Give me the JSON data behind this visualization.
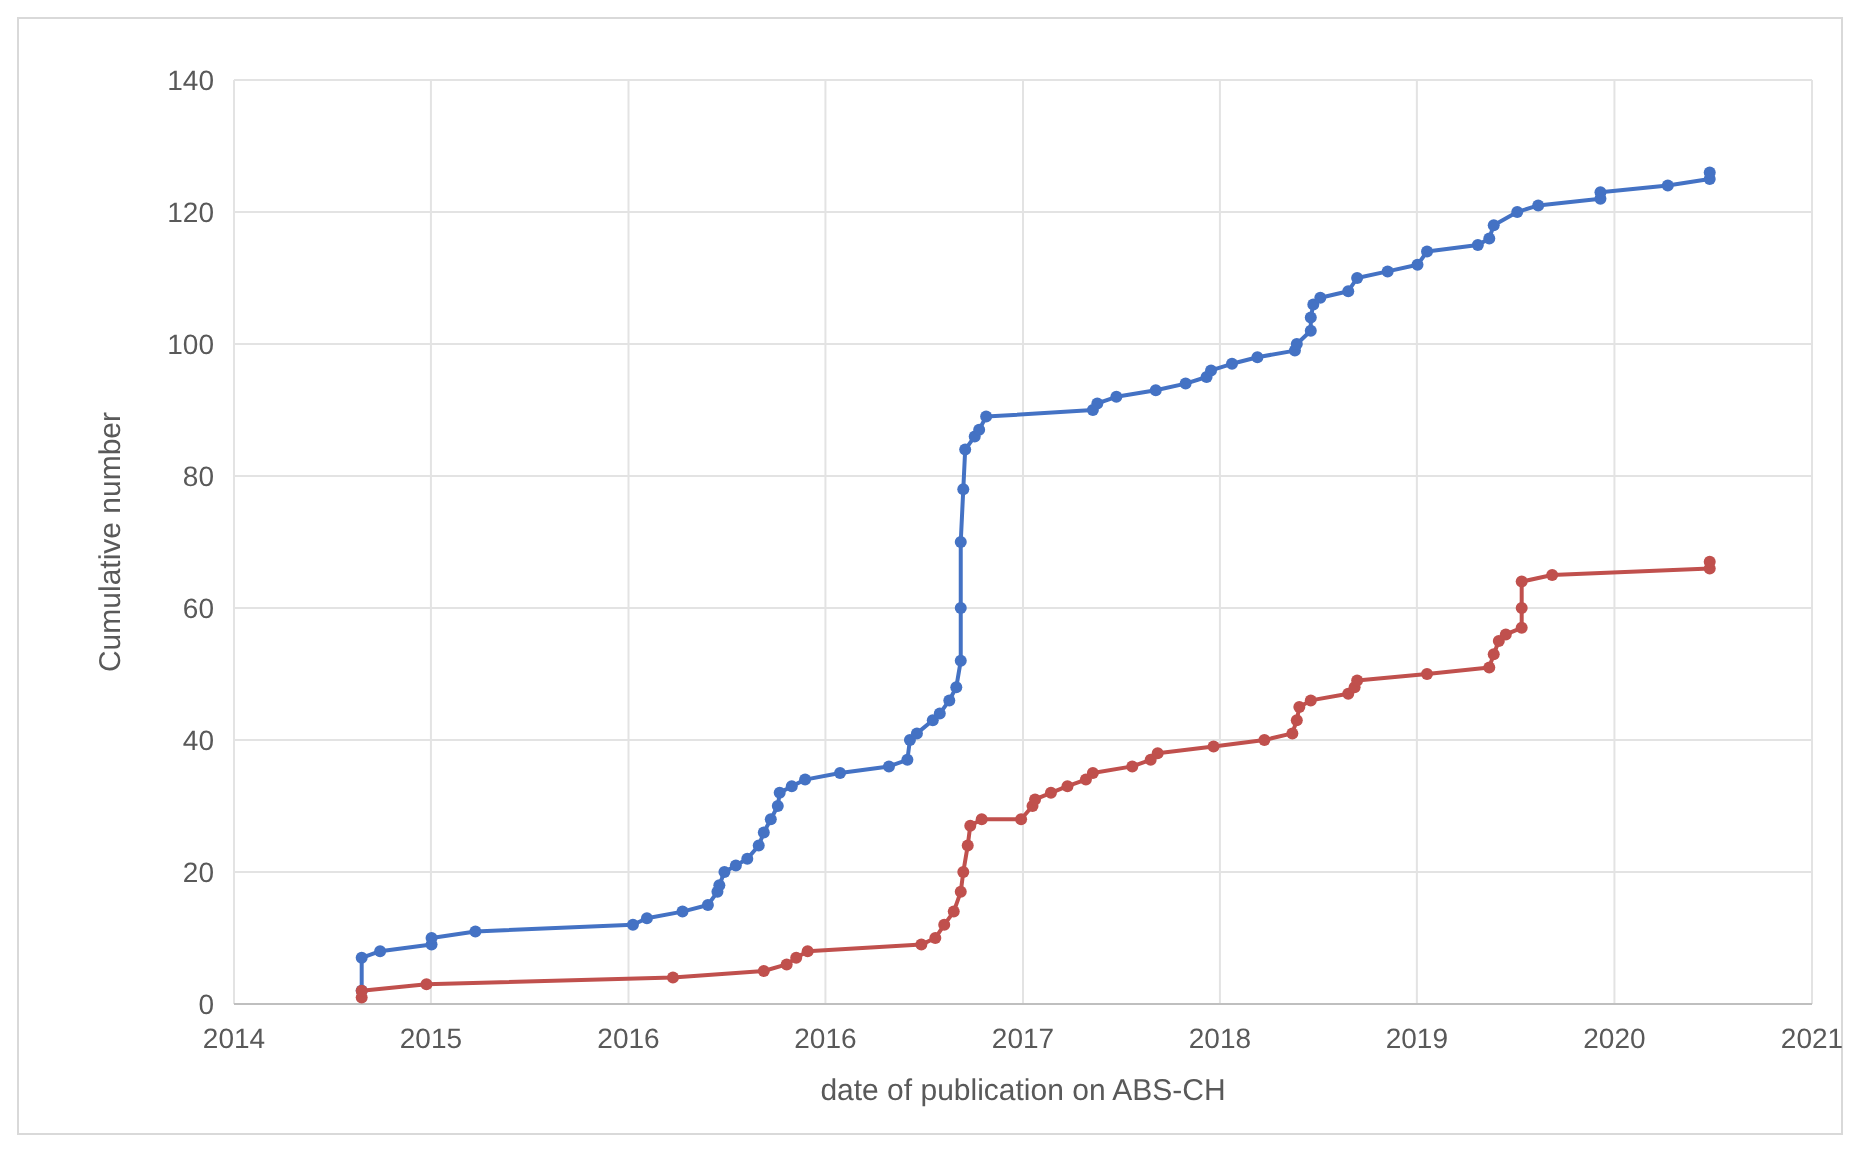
{
  "chart_data": {
    "type": "line",
    "xlabel": "date of publication on ABS-CH",
    "ylabel": "Cumulative number",
    "xlim": [
      "2014-04-20",
      "2021-02-06"
    ],
    "xticks": [
      {
        "value": "2014-04-20",
        "label": "2014"
      },
      {
        "value": "2015-02-24",
        "label": "2015"
      },
      {
        "value": "2016-01-01",
        "label": "2016"
      },
      {
        "value": "2016-11-06",
        "label": "2016"
      },
      {
        "value": "2017-09-13",
        "label": "2017"
      },
      {
        "value": "2018-07-20",
        "label": "2018"
      },
      {
        "value": "2019-05-26",
        "label": "2019"
      },
      {
        "value": "2020-04-01",
        "label": "2020"
      },
      {
        "value": "2021-02-06",
        "label": "2021"
      }
    ],
    "ylim": [
      0,
      140
    ],
    "yticks": [
      0,
      20,
      40,
      60,
      80,
      100,
      120,
      140
    ],
    "grid": true,
    "marker": "circle",
    "line_style": "solid",
    "series": [
      {
        "color": "#4472c4",
        "x": [
          "2014-11-07",
          "2014-11-07",
          "2014-12-06",
          "2015-02-25",
          "2015-02-25",
          "2015-05-05",
          "2016-01-08",
          "2016-01-30",
          "2016-03-26",
          "2016-05-05",
          "2016-05-20",
          "2016-05-23",
          "2016-05-31",
          "2016-06-18",
          "2016-07-06",
          "2016-07-24",
          "2016-08-01",
          "2016-08-12",
          "2016-08-23",
          "2016-08-26",
          "2016-09-14",
          "2016-10-05",
          "2016-11-29",
          "2017-02-14",
          "2017-03-15",
          "2017-03-19",
          "2017-03-30",
          "2017-04-24",
          "2017-05-05",
          "2017-05-20",
          "2017-05-31",
          "2017-06-07",
          "2017-06-07",
          "2017-06-07",
          "2017-06-11",
          "2017-06-14",
          "2017-06-29",
          "2017-07-06",
          "2017-07-17",
          "2018-01-01",
          "2018-01-08",
          "2018-02-07",
          "2018-04-10",
          "2018-05-27",
          "2018-06-29",
          "2018-07-06",
          "2018-08-08",
          "2018-09-17",
          "2018-11-15",
          "2018-11-18",
          "2018-12-10",
          "2018-12-10",
          "2018-12-14",
          "2018-12-25",
          "2019-02-07",
          "2019-02-21",
          "2019-04-10",
          "2019-05-27",
          "2019-06-11",
          "2019-08-30",
          "2019-09-17",
          "2019-09-24",
          "2019-10-31",
          "2019-12-03",
          "2020-03-10",
          "2020-03-10",
          "2020-06-24",
          "2020-08-29",
          "2020-08-29"
        ],
        "values": [
          2,
          7,
          8,
          9,
          10,
          11,
          12,
          13,
          14,
          15,
          17,
          18,
          20,
          21,
          22,
          24,
          26,
          28,
          30,
          32,
          33,
          34,
          35,
          36,
          37,
          40,
          41,
          43,
          44,
          46,
          48,
          52,
          60,
          70,
          78,
          84,
          86,
          87,
          89,
          90,
          91,
          92,
          93,
          94,
          95,
          96,
          97,
          98,
          99,
          100,
          102,
          104,
          106,
          107,
          108,
          110,
          111,
          112,
          114,
          115,
          116,
          118,
          120,
          121,
          122,
          123,
          124,
          125,
          126
        ]
      },
      {
        "color": "#c0504d",
        "x": [
          "2014-11-07",
          "2014-11-07",
          "2015-02-17",
          "2016-03-11",
          "2016-08-01",
          "2016-09-06",
          "2016-09-21",
          "2016-10-09",
          "2017-04-06",
          "2017-04-28",
          "2017-05-12",
          "2017-05-27",
          "2017-06-07",
          "2017-06-11",
          "2017-06-18",
          "2017-06-22",
          "2017-07-10",
          "2017-09-10",
          "2017-09-28",
          "2017-10-02",
          "2017-10-27",
          "2017-11-22",
          "2017-12-21",
          "2018-01-01",
          "2018-03-04",
          "2018-04-02",
          "2018-04-13",
          "2018-07-10",
          "2018-09-28",
          "2018-11-11",
          "2018-11-18",
          "2018-11-22",
          "2018-12-10",
          "2019-02-07",
          "2019-02-17",
          "2019-02-21",
          "2019-06-11",
          "2019-09-17",
          "2019-09-24",
          "2019-10-02",
          "2019-10-13",
          "2019-11-07",
          "2019-11-07",
          "2019-11-07",
          "2019-12-25",
          "2020-08-29",
          "2020-08-29"
        ],
        "values": [
          1,
          2,
          3,
          4,
          5,
          6,
          7,
          8,
          9,
          10,
          12,
          14,
          17,
          20,
          24,
          27,
          28,
          28,
          30,
          31,
          32,
          33,
          34,
          35,
          36,
          37,
          38,
          39,
          40,
          41,
          43,
          45,
          46,
          47,
          48,
          49,
          50,
          51,
          53,
          55,
          56,
          57,
          60,
          64,
          65,
          66,
          67
        ]
      }
    ]
  }
}
